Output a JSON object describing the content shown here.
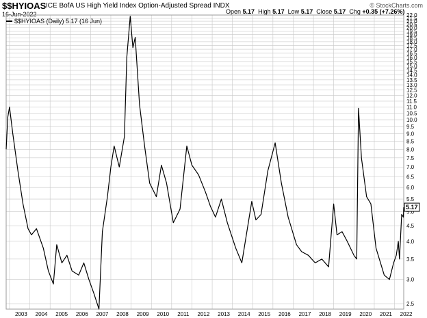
{
  "header": {
    "symbol": "$$HYIOAS",
    "name": "ICE BofA US High Yield Index Option-Adjusted Spread",
    "exchange": "INDX",
    "date": "16-Jun-2022",
    "brand": "© StockCharts.com",
    "ohlc": [
      {
        "label": "Open",
        "value": "5.17"
      },
      {
        "label": "High",
        "value": "5.17"
      },
      {
        "label": "Low",
        "value": "5.17"
      },
      {
        "label": "Close",
        "value": "5.17"
      },
      {
        "label": "Chg",
        "value": "+0.35 (+7.26%)"
      }
    ],
    "legend": "$$HYIOAS (Daily) 5.17 (16 Jun)",
    "last_value_tag": "5.17"
  },
  "colors": {
    "line": "#000000",
    "grid": "#c8c8c8",
    "tag_bg": "#ffffff",
    "legend_dash": "#000000"
  },
  "chart_data": {
    "type": "line",
    "title": "ICE BofA US High Yield Index Option-Adjusted Spread",
    "xlabel": "",
    "ylabel": "",
    "y_scale": "log",
    "ylim": [
      2.4,
      22.0
    ],
    "xlim": [
      "2002-11-01",
      "2022-06-16"
    ],
    "grid": true,
    "legend_position": "top-left",
    "x_ticks": [
      "2003",
      "2004",
      "2005",
      "2006",
      "2007",
      "2008",
      "2009",
      "2010",
      "2011",
      "2012",
      "2013",
      "2014",
      "2015",
      "2016",
      "2017",
      "2018",
      "2019",
      "2020",
      "2021",
      "2022"
    ],
    "y_ticks": [
      2.5,
      3.0,
      3.5,
      4.0,
      4.5,
      5.0,
      5.5,
      6.0,
      6.5,
      7.0,
      7.5,
      8.0,
      8.5,
      9.0,
      9.5,
      10.0,
      10.5,
      11.0,
      11.5,
      12.0,
      12.5,
      13.0,
      13.5,
      14.0,
      14.5,
      15.0,
      15.5,
      16.0,
      16.5,
      17.0,
      17.5,
      18.0,
      18.5,
      19.0,
      19.5,
      20.0,
      20.5,
      21.0,
      21.5,
      22.0
    ],
    "series": [
      {
        "name": "$$HYIOAS",
        "points": [
          [
            "2002-11-01",
            8.0
          ],
          [
            "2002-12-01",
            10.2
          ],
          [
            "2003-01-01",
            11.0
          ],
          [
            "2003-03-01",
            9.0
          ],
          [
            "2003-06-01",
            6.8
          ],
          [
            "2003-09-01",
            5.3
          ],
          [
            "2003-12-01",
            4.4
          ],
          [
            "2004-02-01",
            4.2
          ],
          [
            "2004-05-01",
            4.4
          ],
          [
            "2004-09-01",
            3.8
          ],
          [
            "2004-12-01",
            3.2
          ],
          [
            "2005-03-01",
            2.9
          ],
          [
            "2005-05-01",
            3.9
          ],
          [
            "2005-08-01",
            3.4
          ],
          [
            "2005-11-01",
            3.6
          ],
          [
            "2006-02-01",
            3.2
          ],
          [
            "2006-06-01",
            3.1
          ],
          [
            "2006-09-01",
            3.4
          ],
          [
            "2006-12-01",
            3.0
          ],
          [
            "2007-03-01",
            2.7
          ],
          [
            "2007-06-01",
            2.4
          ],
          [
            "2007-08-01",
            4.3
          ],
          [
            "2007-11-01",
            5.6
          ],
          [
            "2008-01-01",
            7.0
          ],
          [
            "2008-03-01",
            8.2
          ],
          [
            "2008-06-01",
            7.0
          ],
          [
            "2008-09-01",
            8.8
          ],
          [
            "2008-10-15",
            16.0
          ],
          [
            "2008-12-15",
            21.8
          ],
          [
            "2009-02-01",
            17.2
          ],
          [
            "2009-03-15",
            18.6
          ],
          [
            "2009-06-01",
            11.2
          ],
          [
            "2009-09-01",
            8.2
          ],
          [
            "2009-12-01",
            6.2
          ],
          [
            "2010-04-01",
            5.6
          ],
          [
            "2010-07-01",
            7.1
          ],
          [
            "2010-10-01",
            6.2
          ],
          [
            "2011-02-01",
            4.6
          ],
          [
            "2011-06-01",
            5.1
          ],
          [
            "2011-10-01",
            8.2
          ],
          [
            "2012-01-01",
            7.1
          ],
          [
            "2012-05-01",
            6.6
          ],
          [
            "2012-09-01",
            5.8
          ],
          [
            "2012-12-01",
            5.2
          ],
          [
            "2013-03-01",
            4.8
          ],
          [
            "2013-06-15",
            5.5
          ],
          [
            "2013-10-01",
            4.6
          ],
          [
            "2014-03-01",
            3.8
          ],
          [
            "2014-06-20",
            3.4
          ],
          [
            "2014-12-15",
            5.4
          ],
          [
            "2015-03-01",
            4.7
          ],
          [
            "2015-06-01",
            4.9
          ],
          [
            "2015-10-01",
            6.8
          ],
          [
            "2016-02-10",
            8.4
          ],
          [
            "2016-06-01",
            6.2
          ],
          [
            "2016-10-01",
            4.8
          ],
          [
            "2017-03-01",
            3.9
          ],
          [
            "2017-06-01",
            3.7
          ],
          [
            "2017-10-01",
            3.6
          ],
          [
            "2018-02-01",
            3.4
          ],
          [
            "2018-06-01",
            3.5
          ],
          [
            "2018-10-01",
            3.3
          ],
          [
            "2018-12-31",
            5.3
          ],
          [
            "2019-03-01",
            4.2
          ],
          [
            "2019-06-01",
            4.3
          ],
          [
            "2019-09-01",
            4.0
          ],
          [
            "2019-12-31",
            3.6
          ],
          [
            "2020-02-20",
            3.5
          ],
          [
            "2020-03-23",
            10.9
          ],
          [
            "2020-05-15",
            7.5
          ],
          [
            "2020-08-15",
            5.6
          ],
          [
            "2020-11-01",
            5.3
          ],
          [
            "2021-02-01",
            3.8
          ],
          [
            "2021-06-30",
            3.1
          ],
          [
            "2021-10-01",
            3.0
          ],
          [
            "2021-12-15",
            3.4
          ],
          [
            "2022-02-01",
            3.6
          ],
          [
            "2022-03-10",
            4.0
          ],
          [
            "2022-04-01",
            3.5
          ],
          [
            "2022-05-10",
            4.9
          ],
          [
            "2022-06-10",
            4.8
          ],
          [
            "2022-06-16",
            5.17
          ]
        ]
      }
    ]
  }
}
